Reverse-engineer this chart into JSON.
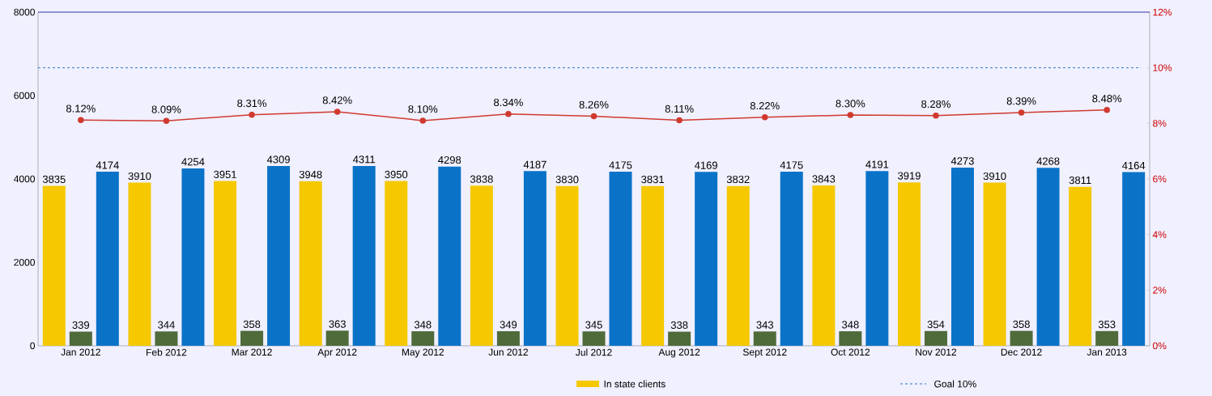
{
  "chart_data": {
    "type": "bar",
    "categories": [
      "Jan 2012",
      "Feb 2012",
      "Mar 2012",
      "Apr 2012",
      "May 2012",
      "Jun 2012",
      "Jul 2012",
      "Aug 2012",
      "Sept 2012",
      "Oct 2012",
      "Nov 2012",
      "Dec 2012",
      "Jan 2013"
    ],
    "series": [
      {
        "name": "In state clients",
        "color": "#f5c800",
        "values": [
          3835,
          3910,
          3951,
          3948,
          3950,
          3838,
          3830,
          3831,
          3832,
          3843,
          3919,
          3910,
          3811
        ]
      },
      {
        "color": "#4f6b3a",
        "values": [
          339,
          344,
          358,
          363,
          348,
          349,
          345,
          338,
          343,
          348,
          354,
          358,
          353
        ]
      },
      {
        "color": "#0a73c8",
        "values": [
          4174,
          4254,
          4309,
          4311,
          4298,
          4187,
          4175,
          4169,
          4175,
          4191,
          4273,
          4268,
          4164
        ]
      },
      {
        "type": "line",
        "axis": "y2",
        "color": "#d03a2e",
        "marker": "circle",
        "line_style": "solid",
        "values": [
          8.12,
          8.09,
          8.31,
          8.42,
          8.1,
          8.34,
          8.26,
          8.11,
          8.22,
          8.3,
          8.28,
          8.39,
          8.48
        ],
        "value_labels": [
          "8.12%",
          "8.09%",
          "8.31%",
          "8.42%",
          "8.10%",
          "8.34%",
          "8.26%",
          "8.11%",
          "8.22%",
          "8.30%",
          "8.28%",
          "8.39%",
          "8.48%"
        ]
      }
    ],
    "ylim": [
      0,
      8000
    ],
    "yticks": [
      0,
      2000,
      4000,
      6000,
      8000
    ],
    "y2lim": [
      0,
      12
    ],
    "y2ticks": [
      {
        "value": 0,
        "label": "0%"
      },
      {
        "value": 2,
        "label": "2%"
      },
      {
        "value": 4,
        "label": "4%"
      },
      {
        "value": 6,
        "label": "6%"
      },
      {
        "value": 8,
        "label": "8%"
      },
      {
        "value": 10,
        "label": "10%"
      },
      {
        "value": 12,
        "label": "12%"
      }
    ],
    "ref_lines": [
      {
        "axis": "y2",
        "value": 10,
        "label": "Goal 10%",
        "color": "#2e75c9",
        "line_style": "dashed"
      }
    ],
    "data_labels": true,
    "legend": "bottom"
  }
}
